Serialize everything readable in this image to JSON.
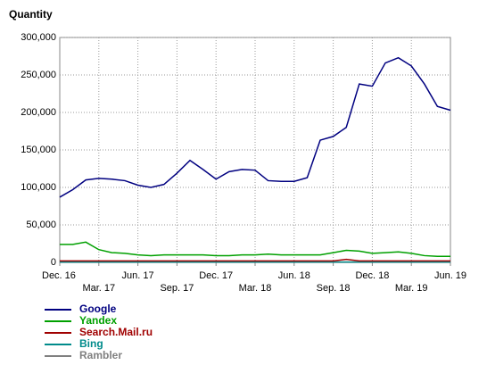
{
  "chart_data": {
    "type": "line",
    "title": "Quantity",
    "categories": [
      "Dec. 16",
      null,
      null,
      "Mar. 17",
      null,
      null,
      "Jun. 17",
      null,
      null,
      "Sep. 17",
      null,
      null,
      "Dec. 17",
      null,
      null,
      "Mar. 18",
      null,
      null,
      "Jun. 18",
      null,
      null,
      "Sep. 18",
      null,
      null,
      "Dec. 18",
      null,
      null,
      "Mar. 19",
      null,
      null,
      "Jun. 19"
    ],
    "ylim": [
      0,
      300000
    ],
    "yticks": [
      0,
      {
        "value": 50000,
        "label": "50,000"
      },
      {
        "value": 100000,
        "label": "100,000"
      },
      {
        "value": 150000,
        "label": "150,000"
      },
      {
        "value": 200000,
        "label": "200,000"
      },
      {
        "value": 250000,
        "label": "250,000"
      },
      {
        "value": 300000,
        "label": "300,000"
      }
    ],
    "grid": true,
    "legend": "bottom-left",
    "series": [
      {
        "name": "Google",
        "color": "#000080",
        "values": [
          87000,
          97000,
          110000,
          112000,
          111000,
          109000,
          103000,
          100000,
          104000,
          119000,
          136000,
          124000,
          111000,
          121000,
          124000,
          123000,
          109000,
          108000,
          108000,
          113000,
          163000,
          168000,
          180000,
          238000,
          235000,
          266000,
          273000,
          262000,
          238000,
          208000,
          203000
        ]
      },
      {
        "name": "Yandex",
        "color": "#00a000",
        "values": [
          24000,
          24000,
          27000,
          17000,
          13000,
          12000,
          10000,
          9000,
          10000,
          10000,
          10000,
          10000,
          9000,
          9000,
          10000,
          10000,
          11000,
          10000,
          10000,
          10000,
          10000,
          13000,
          16000,
          15000,
          12000,
          13000,
          14000,
          12000,
          9000,
          8000,
          8000
        ]
      },
      {
        "name": "Search.Mail.ru",
        "color": "#a00000",
        "values": [
          2000,
          2000,
          2000,
          2000,
          2000,
          2000,
          2000,
          2000,
          2000,
          2000,
          2000,
          2000,
          2000,
          2000,
          2000,
          2000,
          2000,
          2000,
          2000,
          2000,
          2000,
          2000,
          4000,
          2000,
          2000,
          2000,
          2000,
          2000,
          2000,
          2000,
          2000
        ]
      },
      {
        "name": "Bing",
        "color": "#008b8b",
        "values": [
          500,
          500,
          500,
          500,
          500,
          500,
          500,
          500,
          500,
          500,
          500,
          500,
          500,
          500,
          500,
          500,
          500,
          500,
          500,
          500,
          500,
          500,
          500,
          500,
          500,
          500,
          500,
          500,
          500,
          500,
          500
        ]
      },
      {
        "name": "Rambler",
        "color": "#808080",
        "values": [
          200,
          200,
          200,
          200,
          200,
          200,
          200,
          200,
          200,
          200,
          200,
          200,
          200,
          200,
          200,
          200,
          200,
          200,
          200,
          200,
          200,
          200,
          200,
          200,
          200,
          200,
          200,
          200,
          200,
          200,
          200
        ]
      }
    ]
  }
}
